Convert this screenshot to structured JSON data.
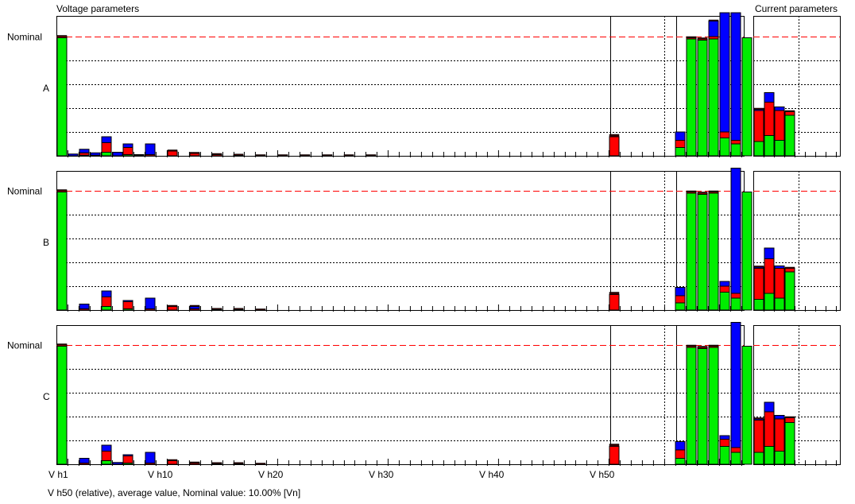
{
  "headers": {
    "voltage": "Voltage parameters",
    "current": "Current parameters"
  },
  "footer": "V h50 (relative), average value, Nominal value: 10.00% [Vn]",
  "nominal_label": "Nominal",
  "x_tick_labels": [
    {
      "label": "V h1",
      "slot": 1
    },
    {
      "label": "V h10",
      "slot": 10
    },
    {
      "label": "V h20",
      "slot": 20
    },
    {
      "label": "V h30",
      "slot": 30
    },
    {
      "label": "V h40",
      "slot": 40
    },
    {
      "label": "V h50",
      "slot": 50
    }
  ],
  "colors": {
    "green": "#00ee00",
    "red": "#ff0000",
    "blue": "#0000ff",
    "nominal_line": "#ff0000",
    "grid": "#000000",
    "frame": "#000000"
  },
  "chart_data": {
    "type": "bar",
    "stacking": "stacked segments (green, red, blue) per bar",
    "nominal_value": 100,
    "y_range": [
      0,
      120
    ],
    "grid": "dotted horizontal lines",
    "panels": [
      {
        "label": "A",
        "voltage_bars": [
          {
            "slot": 1,
            "green": 99,
            "red": 1,
            "blue": 0,
            "dark": 1
          },
          {
            "slot": 2,
            "green": 0,
            "red": 0,
            "blue": 1.5,
            "dark": 0
          },
          {
            "slot": 3,
            "green": 0.5,
            "red": 2,
            "blue": 3,
            "dark": 0
          },
          {
            "slot": 4,
            "green": 0,
            "red": 0.5,
            "blue": 2,
            "dark": 0
          },
          {
            "slot": 5,
            "green": 3,
            "red": 8,
            "blue": 5,
            "dark": 0
          },
          {
            "slot": 6,
            "green": 0,
            "red": 0,
            "blue": 3,
            "dark": 0
          },
          {
            "slot": 7,
            "green": 1,
            "red": 6,
            "blue": 3,
            "dark": 0
          },
          {
            "slot": 8,
            "green": 0,
            "red": 0.5,
            "blue": 0.5,
            "dark": 0
          },
          {
            "slot": 9,
            "green": 0,
            "red": 1,
            "blue": 9,
            "dark": 0
          },
          {
            "slot": 11,
            "green": 0,
            "red": 4,
            "blue": 0,
            "dark": 1
          },
          {
            "slot": 13,
            "green": 0,
            "red": 2,
            "blue": 0,
            "dark": 1
          },
          {
            "slot": 15,
            "green": 0,
            "red": 1,
            "blue": 0,
            "dark": 1
          },
          {
            "slot": 17,
            "green": 0,
            "red": 0.5,
            "blue": 0,
            "dark": 1
          },
          {
            "slot": 19,
            "green": 0,
            "red": 0,
            "blue": 0,
            "dark": 1
          },
          {
            "slot": 21,
            "green": 0,
            "red": 0,
            "blue": 0,
            "dark": 1
          },
          {
            "slot": 23,
            "green": 0,
            "red": 0,
            "blue": 0,
            "dark": 0.5
          },
          {
            "slot": 25,
            "green": 0,
            "red": 0,
            "blue": 0,
            "dark": 0.5
          },
          {
            "slot": 27,
            "green": 0,
            "red": 0,
            "blue": 0,
            "dark": 0.5
          },
          {
            "slot": 29,
            "green": 0,
            "red": 0,
            "blue": 0,
            "dark": 0.5
          },
          {
            "slot": 51,
            "green": 0,
            "red": 16,
            "blue": 0,
            "dark": 2
          },
          {
            "slot": 57,
            "green": 7,
            "red": 6,
            "blue": 7,
            "dark": 0
          },
          {
            "slot": 58,
            "green": 98,
            "red": 1,
            "blue": 0,
            "dark": 1
          },
          {
            "slot": 59,
            "green": 97,
            "red": 1,
            "blue": 0,
            "dark": 1
          },
          {
            "slot": 60,
            "green": 98,
            "red": 2,
            "blue": 13,
            "dark": 1
          },
          {
            "slot": 61,
            "green": 15,
            "red": 5,
            "blue": 100,
            "dark": 0
          },
          {
            "slot": 62,
            "green": 10,
            "red": 3,
            "blue": 107,
            "dark": 0
          },
          {
            "slot": 63,
            "green": 99,
            "red": 0,
            "blue": 0,
            "dark": 0
          }
        ],
        "current_bars": [
          {
            "slot": 1,
            "green": 12,
            "red": 26,
            "blue": 1,
            "dark": 1
          },
          {
            "slot": 2,
            "green": 17,
            "red": 28,
            "blue": 8,
            "dark": 0
          },
          {
            "slot": 3,
            "green": 13,
            "red": 25,
            "blue": 3,
            "dark": 0
          },
          {
            "slot": 4,
            "green": 34,
            "red": 3,
            "blue": 0,
            "dark": 1
          }
        ]
      },
      {
        "label": "B",
        "voltage_bars": [
          {
            "slot": 1,
            "green": 99,
            "red": 1,
            "blue": 0,
            "dark": 1
          },
          {
            "slot": 3,
            "green": 0,
            "red": 1,
            "blue": 4,
            "dark": 0
          },
          {
            "slot": 5,
            "green": 3,
            "red": 8,
            "blue": 5,
            "dark": 0
          },
          {
            "slot": 7,
            "green": 1,
            "red": 6,
            "blue": 1,
            "dark": 0
          },
          {
            "slot": 9,
            "green": 0,
            "red": 1,
            "blue": 9,
            "dark": 0
          },
          {
            "slot": 11,
            "green": 0,
            "red": 3,
            "blue": 0,
            "dark": 1
          },
          {
            "slot": 13,
            "green": 0,
            "red": 1,
            "blue": 2,
            "dark": 1
          },
          {
            "slot": 15,
            "green": 0,
            "red": 0.5,
            "blue": 0,
            "dark": 0.5
          },
          {
            "slot": 17,
            "green": 0,
            "red": 0.5,
            "blue": 0,
            "dark": 0.5
          },
          {
            "slot": 19,
            "green": 0,
            "red": 0,
            "blue": 0,
            "dark": 0.5
          },
          {
            "slot": 51,
            "green": 0,
            "red": 13,
            "blue": 0,
            "dark": 2
          },
          {
            "slot": 57,
            "green": 6,
            "red": 6,
            "blue": 7,
            "dark": 0
          },
          {
            "slot": 58,
            "green": 98,
            "red": 1,
            "blue": 0,
            "dark": 1
          },
          {
            "slot": 59,
            "green": 97,
            "red": 1,
            "blue": 0,
            "dark": 1
          },
          {
            "slot": 60,
            "green": 98,
            "red": 1,
            "blue": 0,
            "dark": 1
          },
          {
            "slot": 61,
            "green": 15,
            "red": 5,
            "blue": 4,
            "dark": 0
          },
          {
            "slot": 62,
            "green": 10,
            "red": 4,
            "blue": 105,
            "dark": 0
          },
          {
            "slot": 63,
            "green": 99,
            "red": 0,
            "blue": 0,
            "dark": 0
          }
        ],
        "current_bars": [
          {
            "slot": 1,
            "green": 9,
            "red": 26,
            "blue": 1,
            "dark": 1
          },
          {
            "slot": 2,
            "green": 14,
            "red": 29,
            "blue": 9,
            "dark": 0
          },
          {
            "slot": 3,
            "green": 10,
            "red": 25,
            "blue": 2,
            "dark": 0
          },
          {
            "slot": 4,
            "green": 32,
            "red": 3,
            "blue": 0,
            "dark": 1
          }
        ]
      },
      {
        "label": "C",
        "voltage_bars": [
          {
            "slot": 1,
            "green": 99,
            "red": 1,
            "blue": 0,
            "dark": 1
          },
          {
            "slot": 3,
            "green": 0,
            "red": 1,
            "blue": 4,
            "dark": 0
          },
          {
            "slot": 5,
            "green": 3,
            "red": 8,
            "blue": 5,
            "dark": 0
          },
          {
            "slot": 6,
            "green": 0,
            "red": 0,
            "blue": 1.5,
            "dark": 0
          },
          {
            "slot": 7,
            "green": 1,
            "red": 6,
            "blue": 1,
            "dark": 0
          },
          {
            "slot": 9,
            "green": 0,
            "red": 1,
            "blue": 9,
            "dark": 0
          },
          {
            "slot": 11,
            "green": 0,
            "red": 3,
            "blue": 0,
            "dark": 1
          },
          {
            "slot": 13,
            "green": 0,
            "red": 1,
            "blue": 0,
            "dark": 1
          },
          {
            "slot": 15,
            "green": 0,
            "red": 0.5,
            "blue": 0,
            "dark": 0.5
          },
          {
            "slot": 17,
            "green": 0,
            "red": 0.5,
            "blue": 0,
            "dark": 0.5
          },
          {
            "slot": 19,
            "green": 0,
            "red": 0,
            "blue": 0,
            "dark": 0.5
          },
          {
            "slot": 51,
            "green": 0,
            "red": 15,
            "blue": 0,
            "dark": 2
          },
          {
            "slot": 57,
            "green": 5,
            "red": 7,
            "blue": 7,
            "dark": 0
          },
          {
            "slot": 58,
            "green": 98,
            "red": 1,
            "blue": 0,
            "dark": 1
          },
          {
            "slot": 59,
            "green": 97,
            "red": 1,
            "blue": 0,
            "dark": 1
          },
          {
            "slot": 60,
            "green": 98,
            "red": 1,
            "blue": 0,
            "dark": 1
          },
          {
            "slot": 61,
            "green": 15,
            "red": 6,
            "blue": 3,
            "dark": 0
          },
          {
            "slot": 62,
            "green": 10,
            "red": 4,
            "blue": 105,
            "dark": 0
          },
          {
            "slot": 63,
            "green": 99,
            "red": 0,
            "blue": 0,
            "dark": 0
          }
        ],
        "current_bars": [
          {
            "slot": 1,
            "green": 10,
            "red": 27,
            "blue": 1,
            "dark": 1
          },
          {
            "slot": 2,
            "green": 15,
            "red": 29,
            "blue": 8,
            "dark": 0
          },
          {
            "slot": 3,
            "green": 11,
            "red": 27,
            "blue": 3,
            "dark": 0
          },
          {
            "slot": 4,
            "green": 35,
            "red": 4,
            "blue": 0,
            "dark": 1
          }
        ]
      }
    ]
  }
}
